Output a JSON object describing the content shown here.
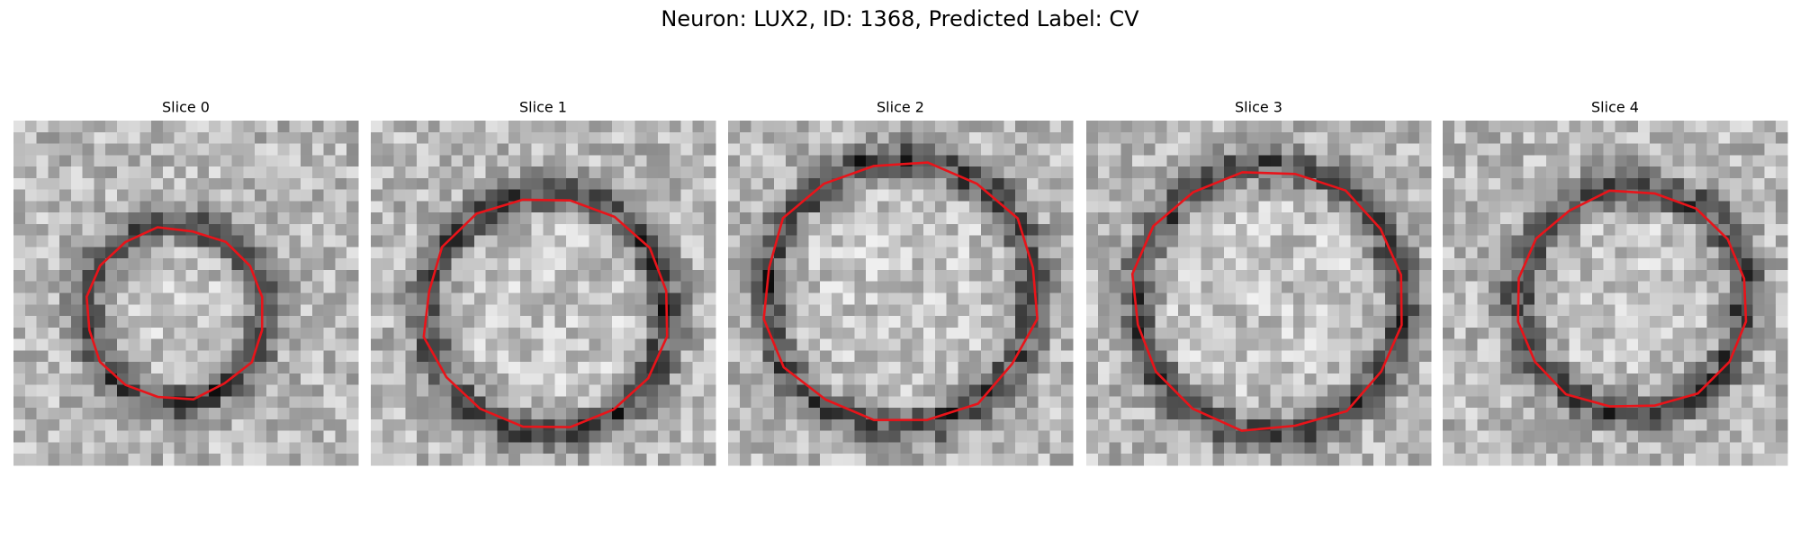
{
  "title": "Neuron: LUX2, ID: 1368, Predicted Label: CV",
  "panels": [
    {
      "title": "Slice 0"
    },
    {
      "title": "Slice 1"
    },
    {
      "title": "Slice 2"
    },
    {
      "title": "Slice 3"
    },
    {
      "title": "Slice 4"
    }
  ]
}
